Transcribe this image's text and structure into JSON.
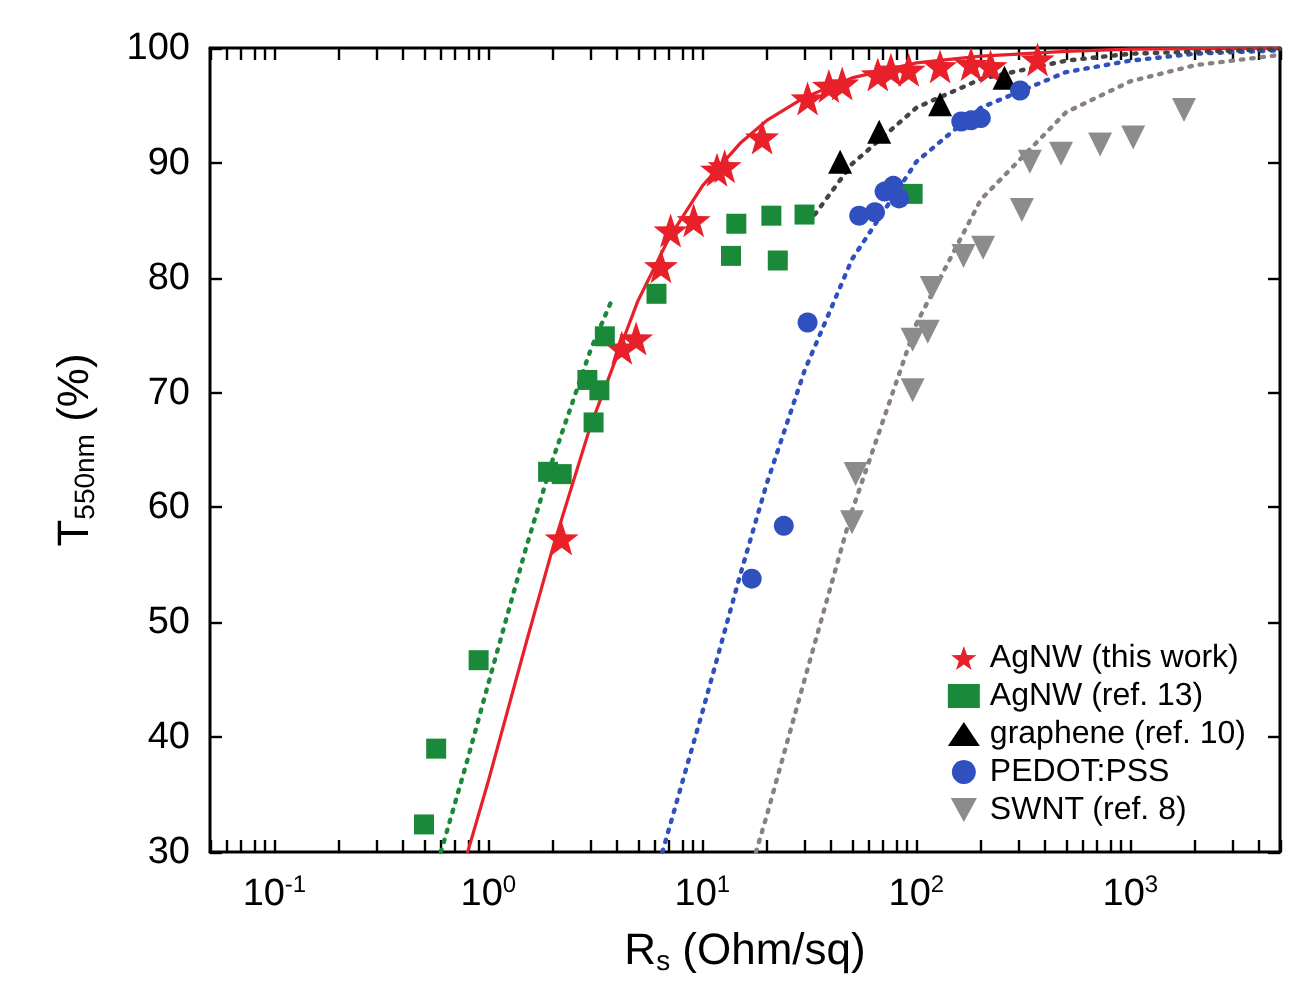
{
  "chart_data": {
    "type": "scatter",
    "xlabel": "R$_{s}$ (Ohm/sq)",
    "ylabel": "T$_{550nm}$ (%)",
    "log": "x",
    "xlim": [
      0.05,
      5000
    ],
    "ylim": [
      30,
      100
    ],
    "xticks": [
      {
        "value": 0.05,
        "label": null
      },
      {
        "value": 0.06,
        "label": null
      },
      {
        "value": 0.07,
        "label": null
      },
      {
        "value": 0.08,
        "label": null
      },
      {
        "value": 0.09,
        "label": null
      },
      {
        "value": 0.1,
        "label": "10$^{-1}$"
      },
      {
        "value": 0.2,
        "label": null
      },
      {
        "value": 0.3,
        "label": null
      },
      {
        "value": 0.4,
        "label": null
      },
      {
        "value": 0.5,
        "label": null
      },
      {
        "value": 0.6,
        "label": null
      },
      {
        "value": 0.7,
        "label": null
      },
      {
        "value": 0.8,
        "label": null
      },
      {
        "value": 0.9,
        "label": null
      },
      {
        "value": 1,
        "label": "10$^{0}$"
      },
      {
        "value": 2,
        "label": null
      },
      {
        "value": 3,
        "label": null
      },
      {
        "value": 4,
        "label": null
      },
      {
        "value": 5,
        "label": null
      },
      {
        "value": 6,
        "label": null
      },
      {
        "value": 7,
        "label": null
      },
      {
        "value": 8,
        "label": null
      },
      {
        "value": 9,
        "label": null
      },
      {
        "value": 10,
        "label": "10$^{1}$"
      },
      {
        "value": 20,
        "label": null
      },
      {
        "value": 30,
        "label": null
      },
      {
        "value": 40,
        "label": null
      },
      {
        "value": 50,
        "label": null
      },
      {
        "value": 60,
        "label": null
      },
      {
        "value": 70,
        "label": null
      },
      {
        "value": 80,
        "label": null
      },
      {
        "value": 90,
        "label": null
      },
      {
        "value": 100,
        "label": "10$^{2}$"
      },
      {
        "value": 200,
        "label": null
      },
      {
        "value": 300,
        "label": null
      },
      {
        "value": 400,
        "label": null
      },
      {
        "value": 500,
        "label": null
      },
      {
        "value": 600,
        "label": null
      },
      {
        "value": 700,
        "label": null
      },
      {
        "value": 800,
        "label": null
      },
      {
        "value": 900,
        "label": null
      },
      {
        "value": 1000,
        "label": "10$^{3}$"
      },
      {
        "value": 2000,
        "label": null
      },
      {
        "value": 3000,
        "label": null
      },
      {
        "value": 4000,
        "label": null
      },
      {
        "value": 5000,
        "label": null
      }
    ],
    "yticks": [
      30,
      40,
      50,
      60,
      70,
      80,
      90,
      100
    ],
    "grid": false,
    "legend": "bottom right",
    "series": [
      {
        "name": "AgNW (this work)",
        "marker": "star",
        "color": "#e8202a",
        "x": [
          2.2,
          4.2,
          4.9,
          6.4,
          7.1,
          9.1,
          11.7,
          12.7,
          19,
          31,
          39,
          45,
          66,
          76,
          92,
          129,
          180,
          222,
          368
        ],
        "values": [
          57.3,
          73.9,
          74.7,
          81.0,
          84.1,
          85.0,
          89.4,
          89.7,
          92.2,
          95.6,
          96.7,
          96.9,
          97.7,
          98.1,
          98.1,
          98.4,
          98.6,
          98.4,
          99.0
        ]
      },
      {
        "name": "AgNW (ref. 13)",
        "marker": "square",
        "color": "#1a8a3a",
        "x": [
          0.5,
          0.57,
          0.9,
          1.9,
          2.2,
          2.9,
          3.3,
          3.1,
          3.5,
          6.1,
          13.6,
          14.4,
          21,
          22.5,
          30,
          96
        ],
        "values": [
          32.4,
          39.0,
          46.7,
          63.1,
          62.9,
          71.1,
          70.2,
          67.4,
          74.9,
          78.6,
          81.9,
          84.7,
          85.4,
          81.5,
          85.5,
          87.3
        ]
      },
      {
        "name": "graphene (ref. 10)",
        "marker": "triangle",
        "color": "#000000",
        "x": [
          44,
          67,
          129,
          258
        ],
        "values": [
          90.1,
          92.7,
          95.1,
          97.4
        ]
      },
      {
        "name": "PEDOT:PSS",
        "marker": "circle",
        "color": "#3050c0",
        "x": [
          17,
          24,
          31,
          54,
          64,
          71,
          78,
          83,
          162,
          180,
          200,
          305
        ],
        "values": [
          53.8,
          58.4,
          76.1,
          85.4,
          85.7,
          87.5,
          88.0,
          86.9,
          93.6,
          93.7,
          93.9,
          96.3
        ]
      },
      {
        "name": "SWNT (ref. 8)",
        "marker": "triangle-down",
        "color": "#8c8c8c",
        "x": [
          50,
          52,
          96,
          96,
          113,
          118,
          166,
          205,
          311,
          339,
          474,
          722,
          1030,
          1780
        ],
        "values": [
          58.7,
          62.9,
          70.2,
          74.6,
          75.3,
          79.1,
          81.9,
          82.6,
          85.9,
          90.1,
          90.8,
          91.6,
          92.2,
          94.6
        ]
      },
      {
        "type": "line",
        "marker": "none",
        "line_style": "solid",
        "color": "#e8202a",
        "x": [
          0.8,
          1,
          1.5,
          2,
          3,
          5,
          7,
          10,
          15,
          20,
          30,
          50,
          100,
          200,
          500,
          1000,
          5000
        ],
        "values": [
          30.0,
          36.2,
          48.2,
          56.5,
          67.1,
          78.0,
          83.5,
          88.0,
          91.7,
          93.7,
          95.7,
          97.4,
          98.7,
          99.3,
          99.7,
          99.9,
          100.0
        ]
      },
      {
        "type": "line",
        "marker": "none",
        "line_style": "dotted",
        "color": "#1a8a3a",
        "x": [
          0.6,
          0.8,
          1,
          1.5,
          2,
          3,
          3.8
        ],
        "values": [
          30.0,
          38.1,
          44.7,
          56.5,
          64.2,
          73.7,
          78.2
        ]
      },
      {
        "type": "line",
        "marker": "none",
        "line_style": "dotted",
        "color": "#3050c0",
        "x": [
          6.5,
          10,
          15,
          20,
          30,
          50,
          100,
          200,
          500,
          1000,
          2000,
          5000
        ],
        "values": [
          30.0,
          42.2,
          54.1,
          62.1,
          71.9,
          81.6,
          90.1,
          94.8,
          97.9,
          98.9,
          99.5,
          99.8
        ]
      },
      {
        "type": "line",
        "marker": "none",
        "line_style": "dotted",
        "color": "#8a8080",
        "x": [
          17.8,
          20,
          30,
          50,
          100,
          200,
          500,
          1000,
          2000,
          5000
        ],
        "values": [
          30.0,
          33.2,
          45.0,
          59.7,
          76.0,
          86.8,
          94.4,
          97.1,
          98.5,
          99.4
        ]
      },
      {
        "type": "line",
        "marker": "none",
        "line_style": "dotted",
        "color": "#444444",
        "x": [
          33.5,
          50,
          100,
          200,
          500,
          1000,
          5000
        ],
        "values": [
          85.5,
          89.9,
          94.8,
          97.3,
          98.9,
          99.5,
          99.9
        ]
      }
    ]
  }
}
